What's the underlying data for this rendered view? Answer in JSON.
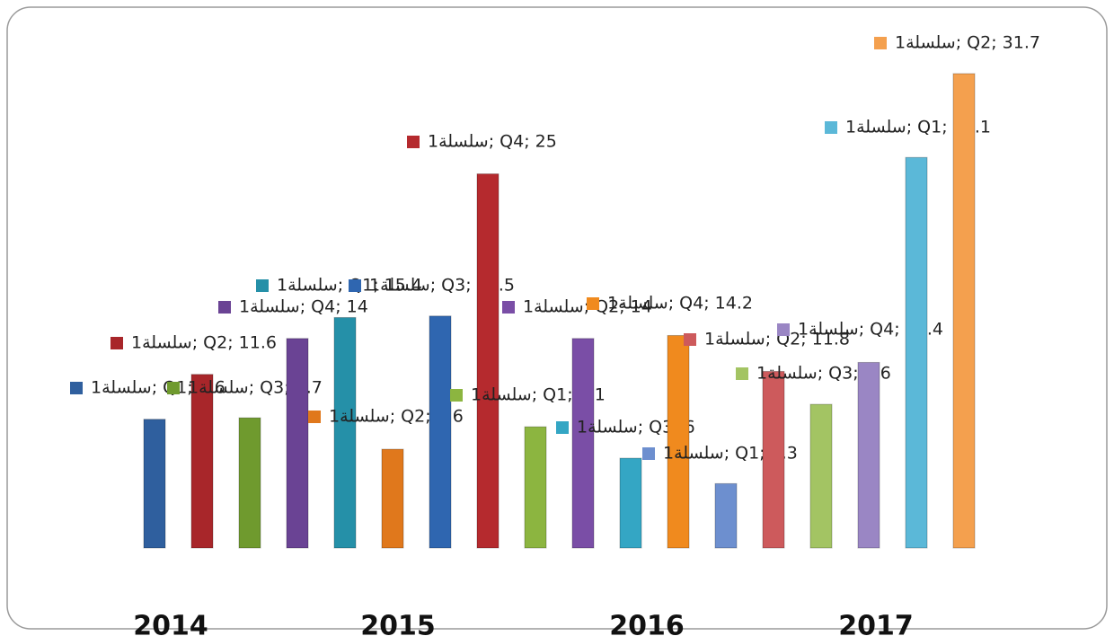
{
  "chart_data": {
    "type": "bar",
    "series_name": "سلسلة1",
    "years": [
      "2014",
      "2015",
      "2016",
      "2017"
    ],
    "categories": [
      "Q1",
      "Q2",
      "Q3",
      "Q4",
      "Q1",
      "Q2",
      "Q3",
      "Q4",
      "Q1",
      "Q2",
      "Q3",
      "Q4",
      "Q1",
      "Q2",
      "Q3",
      "Q4",
      "Q1",
      "Q2"
    ],
    "values": [
      8.6,
      11.6,
      8.7,
      14,
      15.4,
      6.6,
      15.5,
      25,
      8.1,
      14,
      6,
      14.2,
      4.3,
      11.8,
      9.6,
      12.4,
      26.1,
      31.7
    ],
    "value_labels": [
      "سلسلة1; Q1; 8.6",
      "سلسلة1; Q2; 11.6",
      "سلسلة1; Q3; 8.7",
      "سلسلة1; Q4; 14",
      "سلسلة1; Q1; 15.4",
      "سلسلة1; Q2; 6.6",
      "سلسلة1; Q3; 15.5",
      "سلسلة1; Q4; 25",
      "سلسلة1; Q1; 8.1",
      "سلسلة1; Q2; 14",
      "سلسلة1; Q3; 6",
      "سلسلة1; Q4; 14.2",
      "سلسلة1; Q1; 4.3",
      "سلسلة1; Q2; 11.8",
      "سلسلة1; Q3; 9.6",
      "سلسلة1; Q4; 12.4",
      "سلسلة1; Q1; 26.1",
      "سلسلة1; Q2; 31.7"
    ],
    "colors": [
      "#2f5f9e",
      "#a8262a",
      "#6f9a2e",
      "#6a4394",
      "#2590a8",
      "#e0781c",
      "#2f66b0",
      "#b52a2e",
      "#8cb540",
      "#7a4ea6",
      "#34a6c4",
      "#f08a1e",
      "#6d8fcf",
      "#cd5a5c",
      "#a3c463",
      "#9a86c4",
      "#5bb8d8",
      "#f4a04e"
    ],
    "ylim": [
      0,
      35
    ]
  }
}
